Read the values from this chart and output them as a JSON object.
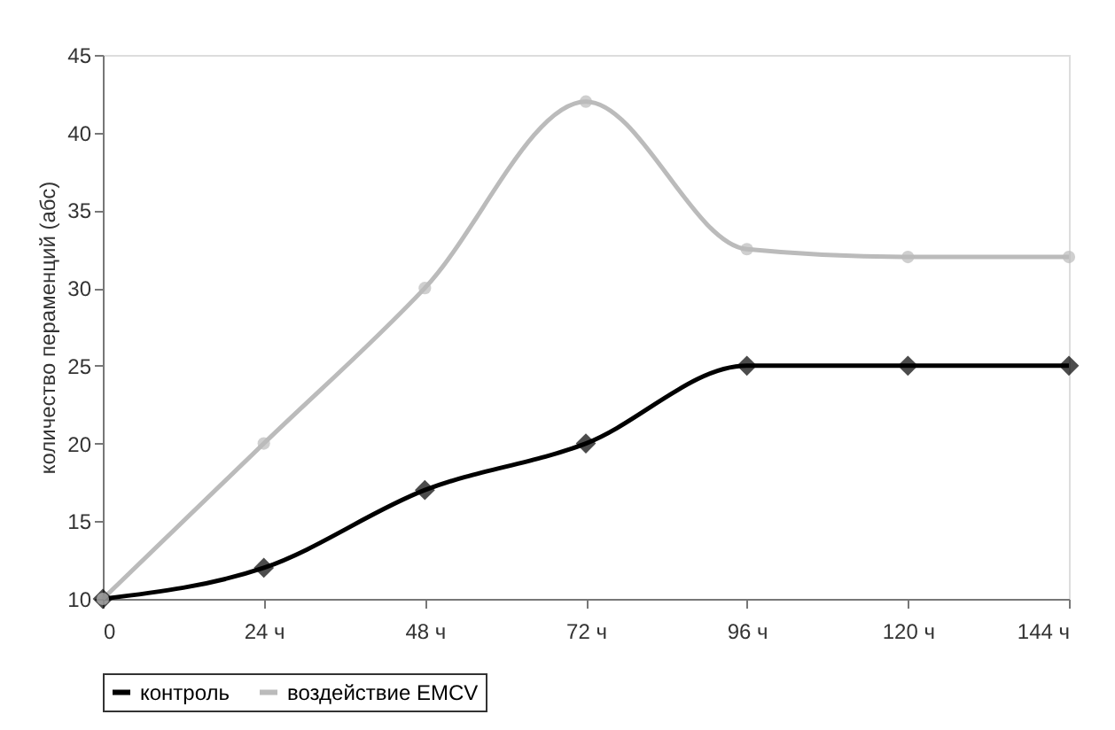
{
  "chart_data": {
    "type": "line",
    "ylabel": "количество пераменций (абс)",
    "categories": [
      "0",
      "24 ч",
      "48 ч",
      "72 ч",
      "96 ч",
      "120 ч",
      "144 ч"
    ],
    "series": [
      {
        "name": "контроль",
        "color": "#000000",
        "marker": "diamond",
        "values": [
          10,
          12,
          17,
          20,
          25,
          25,
          25
        ]
      },
      {
        "name": "воздействие EMCV",
        "color": "#bbbbbb",
        "marker": "circle",
        "values": [
          10,
          20,
          30,
          42,
          32.5,
          32,
          32
        ]
      }
    ],
    "ylim": [
      10,
      45
    ],
    "yticks": [
      10,
      15,
      20,
      25,
      30,
      35,
      40,
      45
    ],
    "grid": false,
    "legend": "bottom"
  }
}
